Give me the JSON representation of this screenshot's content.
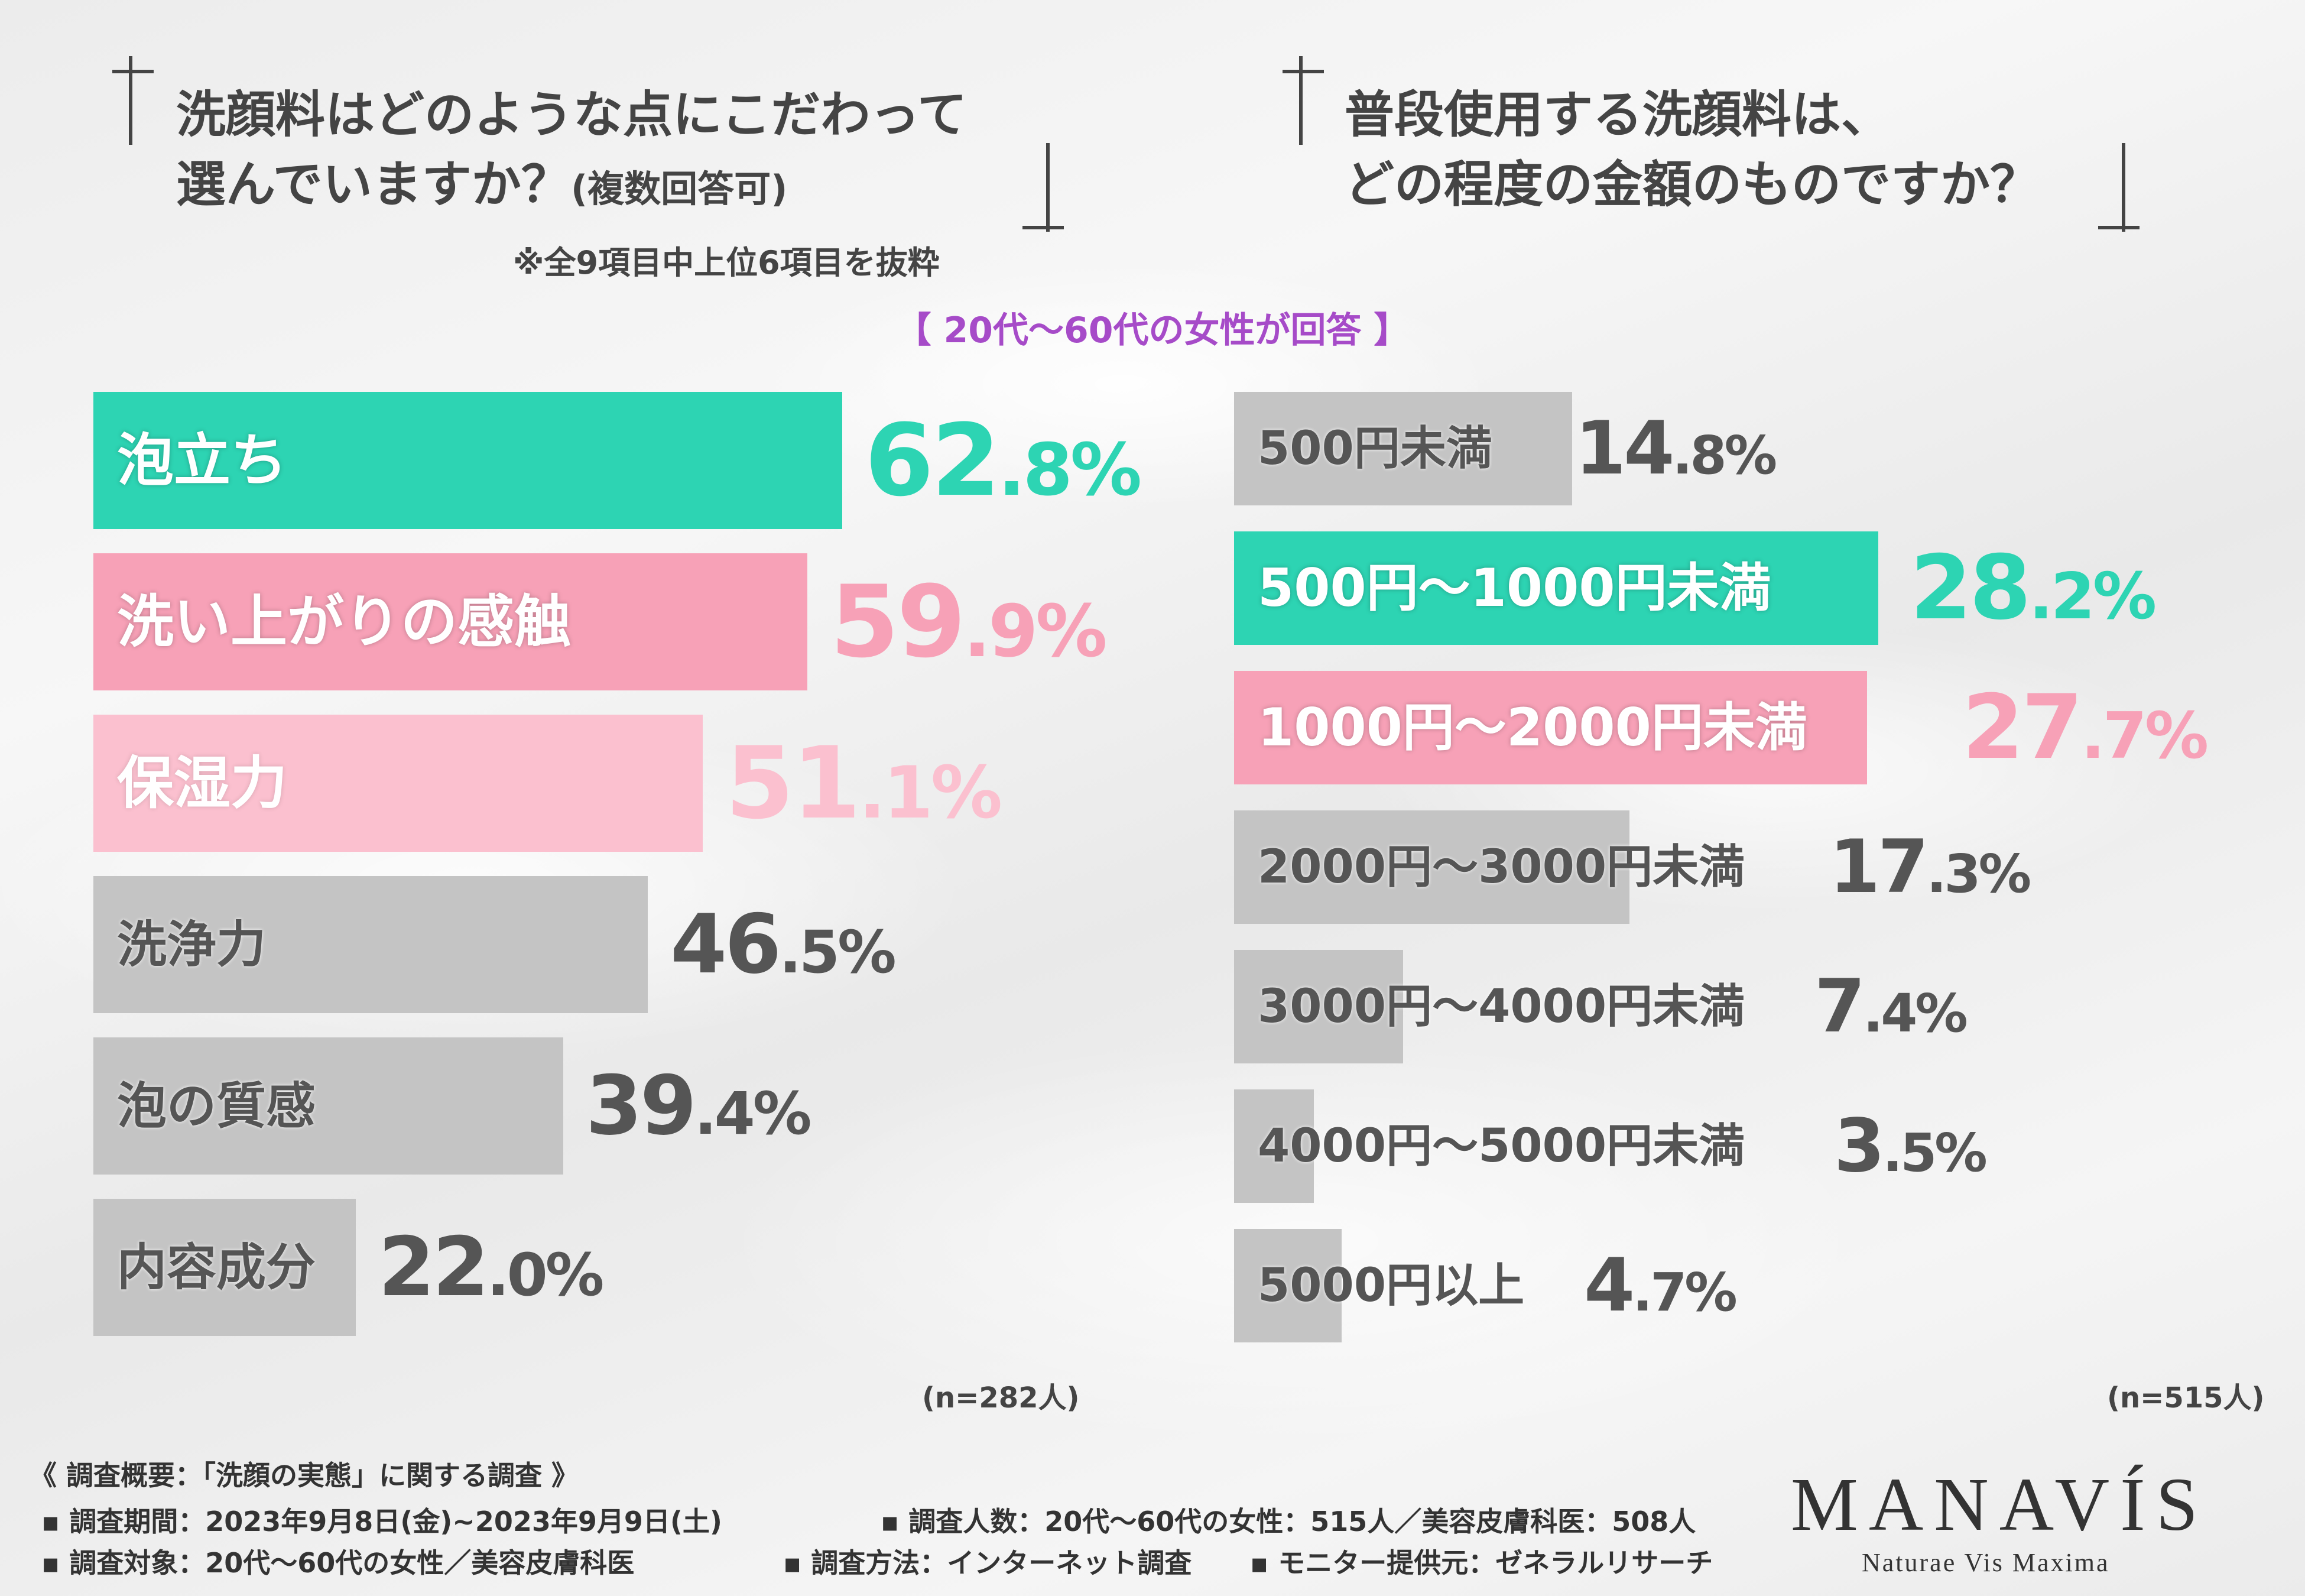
{
  "left_question": {
    "line1": "洗顔料はどのような点にこだわって",
    "line2_main": "選んでいますか？",
    "line2_small": "(複数回答可)",
    "note": "※全9項目中上位6項目を抜粋"
  },
  "right_question": {
    "line1": "普段使用する洗顔料は、",
    "line2": "どの程度の金額のものですか？"
  },
  "respondents_label": "【 20代〜60代の女性が回答 】",
  "left_n": "(n=282人)",
  "right_n": "(n=515人)",
  "colors": {
    "teal": "#2dd4b3",
    "pink": "#f7a1b7",
    "light_pink": "#fbc0cf",
    "gray": "#c4c4c4",
    "text_dark": "#555555"
  },
  "chart_data": [
    {
      "type": "bar",
      "orientation": "horizontal",
      "categories": [
        "泡立ち",
        "洗い上がりの感触",
        "保湿力",
        "洗浄力",
        "泡の質感",
        "内容成分"
      ],
      "values": [
        62.8,
        59.9,
        51.1,
        46.5,
        39.4,
        22.0
      ],
      "labels": [
        "62.8%",
        "59.9%",
        "51.1%",
        "46.5%",
        "39.4%",
        "22.0%"
      ],
      "unit": "%"
    },
    {
      "type": "bar",
      "orientation": "horizontal",
      "categories": [
        "500円未満",
        "500円〜1000円未満",
        "1000円〜2000円未満",
        "2000円〜3000円未満",
        "3000円〜4000円未満",
        "4000円〜5000円未満",
        "5000円以上"
      ],
      "values": [
        14.8,
        28.2,
        27.7,
        17.3,
        7.4,
        3.5,
        4.7
      ],
      "labels": [
        "14.8%",
        "28.2%",
        "27.7%",
        "17.3%",
        "7.4%",
        "3.5%",
        "4.7%"
      ],
      "unit": "%"
    }
  ],
  "footer": {
    "title": "《 調査概要：「洗顔の実態」に関する調査 》",
    "period": "▪ 調査期間：2023年9月8日(金)~2023年9月9日(土)",
    "count": "▪ 調査人数：20代〜60代の女性：515人／美容皮膚科医：508人",
    "target": "▪ 調査対象：20代〜60代の女性／美容皮膚科医",
    "method": "▪ 調査方法：インターネット調査",
    "provider": "▪ モニター提供元：ゼネラルリサーチ"
  },
  "brand": {
    "name": "MANAVÍS",
    "tagline": "Naturae Vis Maxima"
  }
}
